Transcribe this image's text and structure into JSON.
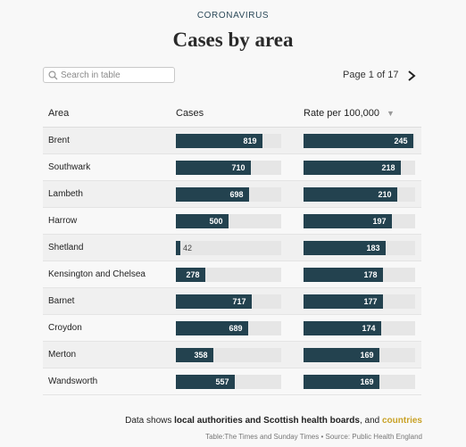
{
  "header": {
    "kicker": "CORONAVIRUS",
    "title": "Cases by area"
  },
  "search": {
    "placeholder": "Search in table"
  },
  "pagination": {
    "page_label": "Page",
    "current": "1",
    "of_label": "of",
    "total": "17"
  },
  "table": {
    "columns": {
      "area": "Area",
      "cases": "Cases",
      "rate": "Rate per 100,000"
    },
    "max_cases": 1000,
    "max_rate": 250,
    "rows": [
      {
        "area": "Brent",
        "cases": 819,
        "rate": 245
      },
      {
        "area": "Southwark",
        "cases": 710,
        "rate": 218
      },
      {
        "area": "Lambeth",
        "cases": 698,
        "rate": 210
      },
      {
        "area": "Harrow",
        "cases": 500,
        "rate": 197
      },
      {
        "area": "Shetland",
        "cases": 42,
        "rate": 183
      },
      {
        "area": "Kensington and Chelsea",
        "cases": 278,
        "rate": 178
      },
      {
        "area": "Barnet",
        "cases": 717,
        "rate": 177
      },
      {
        "area": "Croydon",
        "cases": 689,
        "rate": 174
      },
      {
        "area": "Merton",
        "cases": 358,
        "rate": 169
      },
      {
        "area": "Wandsworth",
        "cases": 557,
        "rate": 169
      }
    ]
  },
  "footer": {
    "prefix": "Data shows ",
    "link1": "local authorities and Scottish health boards",
    "middle": ", and ",
    "link2": "countries",
    "source": "Table:The Times and Sunday Times • Source: Public Health England"
  },
  "colors": {
    "bar": "#23424f",
    "track": "#e6e6e6",
    "accent": "#c9a227"
  }
}
